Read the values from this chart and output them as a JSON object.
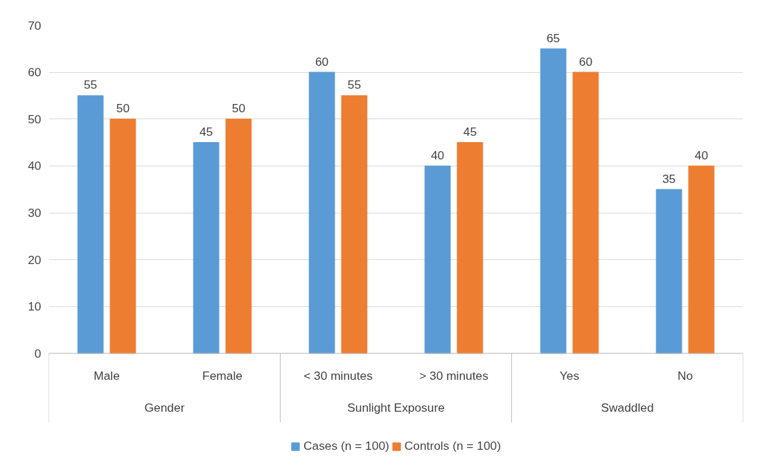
{
  "chart_data": {
    "type": "bar",
    "categories": [
      "Male",
      "Female",
      "< 30 minutes",
      "> 30 minutes",
      "Yes",
      "No"
    ],
    "series": [
      {
        "name": "Cases (n = 100)",
        "color": "#5b9bd5",
        "values": [
          55,
          45,
          60,
          40,
          65,
          35
        ]
      },
      {
        "name": "Controls (n = 100)",
        "color": "#ed7d31",
        "values": [
          50,
          50,
          55,
          45,
          60,
          40
        ]
      }
    ],
    "annotations": [
      "Gender",
      "Sunlight Exposure",
      "Swaddled"
    ],
    "ylim": [
      0,
      70
    ],
    "yticks": [
      0,
      10,
      20,
      30,
      40,
      50,
      60,
      70
    ],
    "grid": "y",
    "legend": "bottom",
    "data_labels": true
  }
}
